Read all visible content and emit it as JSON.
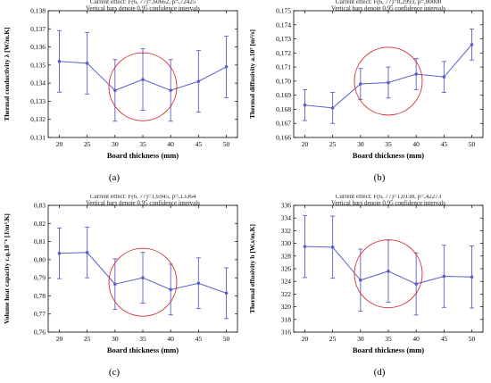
{
  "chart_data": [
    {
      "panel": "(a)",
      "type": "line",
      "title_lines": [
        "Current effect: F(6, 77)=,60662, p=,72425",
        "Vertical bars denote 0,95 confidence intervals"
      ],
      "xlabel": "Board thickness (mm)",
      "ylabel": "Thermal conductivity λ [W/m.K]",
      "x": [
        20,
        25,
        30,
        35,
        40,
        45,
        50
      ],
      "y": [
        0.1352,
        0.1351,
        0.1336,
        0.1342,
        0.1336,
        0.1341,
        0.1349
      ],
      "ci_low": [
        0.1335,
        0.1334,
        0.1319,
        0.1325,
        0.1319,
        0.1324,
        0.1332
      ],
      "ci_high": [
        0.1369,
        0.1368,
        0.1353,
        0.1359,
        0.1353,
        0.1358,
        0.1366
      ],
      "ylim": [
        0.131,
        0.138
      ],
      "yticks": [
        "0,131",
        "0,132",
        "0,133",
        "0,134",
        "0,135",
        "0,136",
        "0,137",
        "0,138"
      ],
      "xticks": [
        "20",
        "25",
        "30",
        "35",
        "40",
        "45",
        "50"
      ],
      "circle": {
        "x": 35,
        "y": 0.1338
      },
      "grid": false,
      "line_color": "#5b5fc7",
      "circle_color": "#d62828"
    },
    {
      "panel": "(b)",
      "type": "line",
      "title_lines": [
        "Current effect: F(6, 77)=8,2993, p=,00000",
        "Vertical bars denote 0,95 confidence intervals"
      ],
      "xlabel": "Board thickness (mm)",
      "ylabel": "Thermal diffusivity a.10⁷ [m²/s]",
      "x": [
        20,
        25,
        30,
        35,
        40,
        45,
        50
      ],
      "y": [
        0.1683,
        0.1681,
        0.1698,
        0.1699,
        0.1705,
        0.1703,
        0.1726
      ],
      "ci_low": [
        0.1672,
        0.167,
        0.1687,
        0.1688,
        0.1694,
        0.1692,
        0.1715
      ],
      "ci_high": [
        0.1694,
        0.1692,
        0.1709,
        0.171,
        0.1716,
        0.1714,
        0.1737
      ],
      "ylim": [
        0.166,
        0.175
      ],
      "yticks": [
        "0,166",
        "0,167",
        "0,168",
        "0,169",
        "0,170",
        "0,171",
        "0,172",
        "0,173",
        "0,174",
        "0,175"
      ],
      "xticks": [
        "20",
        "25",
        "30",
        "35",
        "40",
        "45",
        "50"
      ],
      "circle": {
        "x": 35,
        "y": 0.17
      },
      "grid": false,
      "line_color": "#5b5fc7",
      "circle_color": "#d62828"
    },
    {
      "panel": "(c)",
      "type": "line",
      "title_lines": [
        "Current effect: F(6, 77)=1,6945, p=,13364",
        "Vertical bars denote 0,95 confidence intervals"
      ],
      "xlabel": "Board thickness (mm)",
      "ylabel": "Volume heat capacity c.ϱ.10⁻⁶ [J/m³.K]",
      "x": [
        20,
        25,
        30,
        35,
        40,
        45,
        50
      ],
      "y": [
        0.8035,
        0.804,
        0.7865,
        0.79,
        0.7835,
        0.787,
        0.7815
      ],
      "ci_low": [
        0.7895,
        0.79,
        0.7725,
        0.776,
        0.7695,
        0.773,
        0.7675
      ],
      "ci_high": [
        0.8175,
        0.818,
        0.8005,
        0.804,
        0.7975,
        0.801,
        0.7955
      ],
      "ylim": [
        0.76,
        0.83
      ],
      "yticks": [
        "0,76",
        "0,77",
        "0,78",
        "0,79",
        "0,80",
        "0,81",
        "0,82",
        "0,83"
      ],
      "xticks": [
        "20",
        "25",
        "30",
        "35",
        "40",
        "45",
        "50"
      ],
      "circle": {
        "x": 35,
        "y": 0.7875
      },
      "grid": false,
      "line_color": "#5b5fc7",
      "circle_color": "#d62828"
    },
    {
      "panel": "(d)",
      "type": "line",
      "title_lines": [
        "Current effect: F(6, 77)=1,0138, p=,42273",
        "Vertical bars denote 0,95 confidence intervals"
      ],
      "xlabel": "Board thickness (mm)",
      "ylabel": "Thermal effusivity b [W.s/m.K]",
      "x": [
        20,
        25,
        30,
        35,
        40,
        45,
        50
      ],
      "y": [
        329.5,
        329.4,
        324.2,
        325.6,
        323.6,
        324.8,
        324.7
      ],
      "ci_low": [
        324.6,
        324.5,
        319.3,
        320.7,
        318.7,
        319.9,
        319.8
      ],
      "ci_high": [
        334.4,
        334.3,
        329.1,
        330.5,
        328.5,
        329.7,
        329.6
      ],
      "ylim": [
        316,
        336
      ],
      "yticks": [
        "316",
        "318",
        "320",
        "322",
        "324",
        "326",
        "328",
        "330",
        "332",
        "334",
        "336"
      ],
      "xticks": [
        "20",
        "25",
        "30",
        "35",
        "40",
        "45",
        "50"
      ],
      "circle": {
        "x": 35,
        "y": 325.2
      },
      "grid": false,
      "line_color": "#5b5fc7",
      "circle_color": "#d62828"
    }
  ]
}
